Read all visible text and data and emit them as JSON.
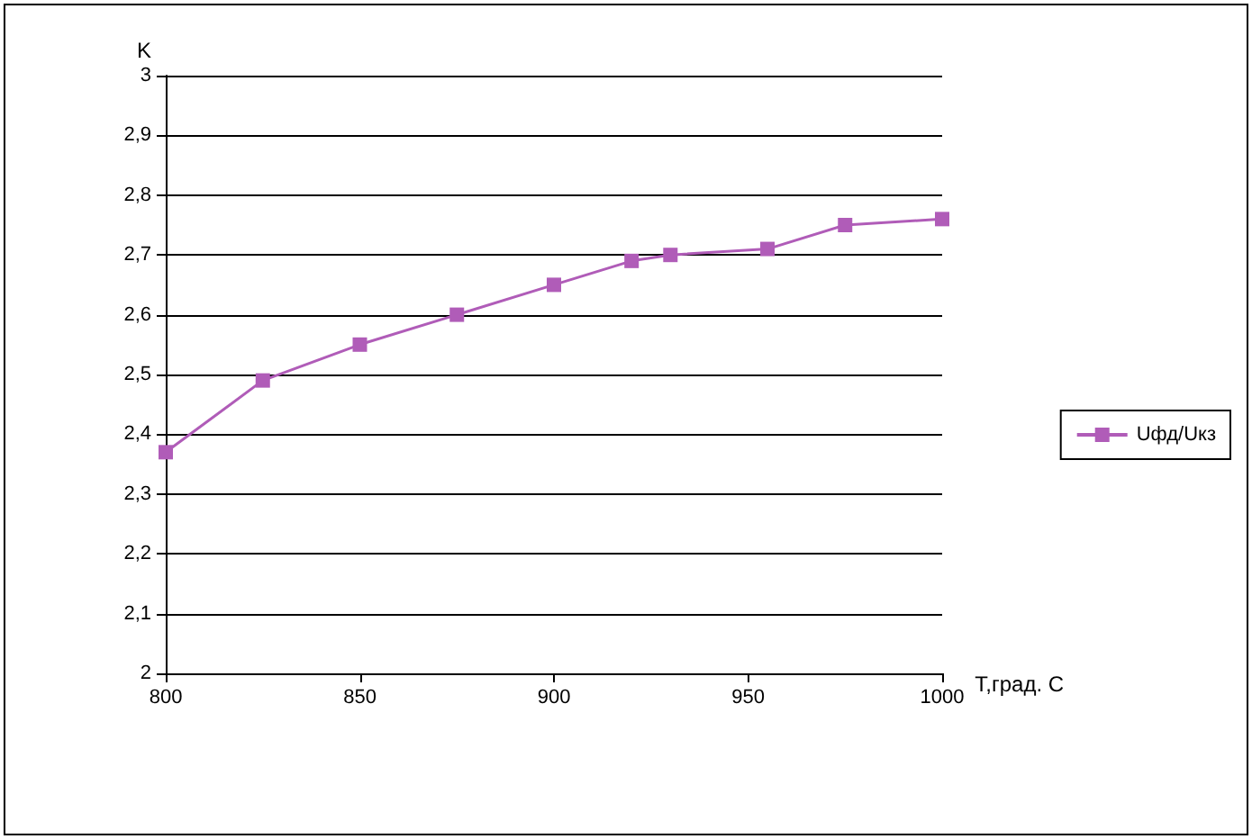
{
  "chart_data": {
    "type": "line",
    "xlabel": "T,град. C",
    "ylabel": "K",
    "x": [
      800,
      825,
      850,
      875,
      900,
      920,
      930,
      955,
      975,
      1000
    ],
    "series": [
      {
        "name": "Uфд/Uкз",
        "color": "#b05cb8",
        "values": [
          2.37,
          2.49,
          2.55,
          2.6,
          2.65,
          2.69,
          2.7,
          2.71,
          2.75,
          2.76
        ]
      }
    ],
    "xlim": [
      800,
      1000
    ],
    "xticks": [
      800,
      850,
      900,
      950,
      1000
    ],
    "ylim": [
      2,
      3
    ],
    "yticks": [
      2,
      {
        "value": 2.1,
        "label": "2,1"
      },
      {
        "value": 2.2,
        "label": "2,2"
      },
      {
        "value": 2.3,
        "label": "2,3"
      },
      {
        "value": 2.4,
        "label": "2,4"
      },
      {
        "value": 2.5,
        "label": "2,5"
      },
      {
        "value": 2.6,
        "label": "2,6"
      },
      {
        "value": 2.7,
        "label": "2,7"
      },
      {
        "value": 2.8,
        "label": "2,8"
      },
      {
        "value": 2.9,
        "label": "2,9"
      },
      3
    ],
    "grid": "y",
    "legend": "right",
    "marker": "square",
    "line_style": "solid"
  }
}
